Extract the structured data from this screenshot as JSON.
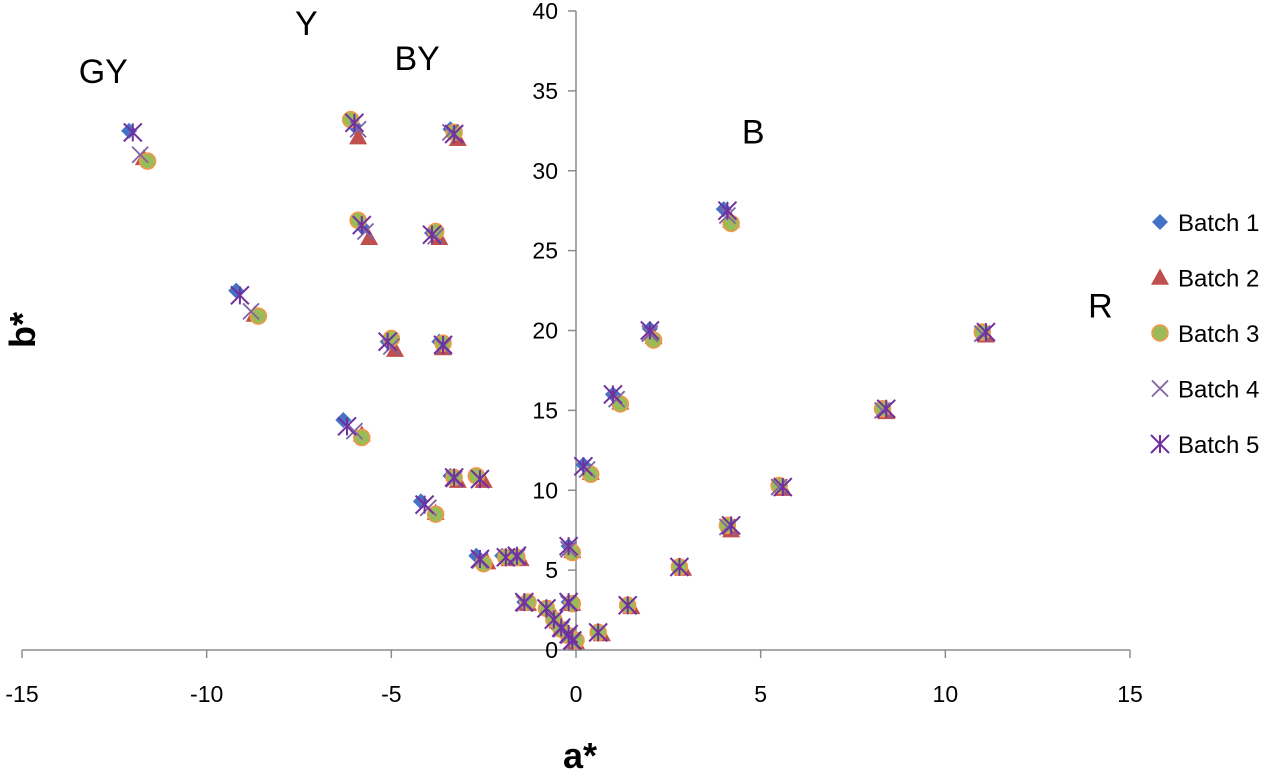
{
  "chart_data": {
    "type": "scatter",
    "xlabel": "a*",
    "ylabel": "b*",
    "xlim": [
      -15,
      15
    ],
    "ylim": [
      0,
      40
    ],
    "x_ticks": [
      -15,
      -10,
      -5,
      0,
      5,
      10,
      15
    ],
    "y_ticks": [
      0,
      5,
      10,
      15,
      20,
      25,
      30,
      35,
      40
    ],
    "grid": false,
    "legend_position": "right",
    "region_labels": [
      {
        "text": "GY",
        "x": -12.8,
        "y": 35.5
      },
      {
        "text": "Y",
        "x": -7.3,
        "y": 38.5
      },
      {
        "text": "BY",
        "x": -4.3,
        "y": 36.3
      },
      {
        "text": "B",
        "x": 4.8,
        "y": 31.7
      },
      {
        "text": "R",
        "x": 14.2,
        "y": 20.8
      }
    ],
    "series": [
      {
        "name": "Batch 1",
        "marker": "diamond",
        "color": "#4472C4",
        "points": [
          [
            -12.1,
            32.5
          ],
          [
            -9.2,
            22.5
          ],
          [
            -6.3,
            14.4
          ],
          [
            -4.2,
            9.3
          ],
          [
            -2.7,
            5.9
          ],
          [
            -6.0,
            32.8
          ],
          [
            -5.8,
            26.5
          ],
          [
            -5.1,
            19.3
          ],
          [
            -3.9,
            26.1
          ],
          [
            -3.7,
            19.3
          ],
          [
            -3.4,
            32.6
          ],
          [
            -3.4,
            10.9
          ],
          [
            -2.7,
            10.9
          ],
          [
            -2.0,
            5.9
          ],
          [
            -1.6,
            5.9
          ],
          [
            -1.4,
            3.0
          ],
          [
            -0.8,
            2.7
          ],
          [
            -0.6,
            2.0
          ],
          [
            -0.5,
            1.4
          ],
          [
            -0.3,
            1.0
          ],
          [
            -0.2,
            6.5
          ],
          [
            -0.2,
            3.0
          ],
          [
            -0.1,
            0.6
          ],
          [
            0.2,
            11.6
          ],
          [
            0.6,
            1.1
          ],
          [
            1.0,
            16.0
          ],
          [
            1.4,
            2.8
          ],
          [
            2.0,
            20.1
          ],
          [
            2.8,
            5.2
          ],
          [
            4.0,
            27.6
          ],
          [
            4.1,
            7.8
          ],
          [
            5.5,
            10.3
          ],
          [
            8.3,
            15.1
          ],
          [
            11.0,
            19.9
          ]
        ]
      },
      {
        "name": "Batch 2",
        "marker": "triangle",
        "color": "#C0504D",
        "points": [
          [
            -11.7,
            30.8
          ],
          [
            -8.7,
            21.0
          ],
          [
            -5.8,
            13.5
          ],
          [
            -3.8,
            8.6
          ],
          [
            -2.4,
            5.5
          ],
          [
            -5.9,
            32.1
          ],
          [
            -5.6,
            25.8
          ],
          [
            -4.9,
            18.8
          ],
          [
            -3.7,
            25.8
          ],
          [
            -3.6,
            18.9
          ],
          [
            -3.2,
            32.0
          ],
          [
            -3.2,
            10.6
          ],
          [
            -2.5,
            10.6
          ],
          [
            -1.8,
            5.7
          ],
          [
            -1.5,
            5.7
          ],
          [
            -1.3,
            2.9
          ],
          [
            -0.7,
            2.6
          ],
          [
            -0.5,
            1.8
          ],
          [
            -0.4,
            1.3
          ],
          [
            -0.2,
            0.9
          ],
          [
            -0.1,
            6.2
          ],
          [
            -0.1,
            2.9
          ],
          [
            0.0,
            0.5
          ],
          [
            0.4,
            11.1
          ],
          [
            0.7,
            1.0
          ],
          [
            1.2,
            15.5
          ],
          [
            1.5,
            2.7
          ],
          [
            2.1,
            19.6
          ],
          [
            2.9,
            5.1
          ],
          [
            4.2,
            26.9
          ],
          [
            4.2,
            7.5
          ],
          [
            5.6,
            10.1
          ],
          [
            8.4,
            14.9
          ],
          [
            11.1,
            19.7
          ]
        ]
      },
      {
        "name": "Batch 3",
        "marker": "circle",
        "color": "#9BBB59",
        "points": [
          [
            -11.6,
            30.6
          ],
          [
            -8.6,
            20.9
          ],
          [
            -5.8,
            13.3
          ],
          [
            -3.8,
            8.5
          ],
          [
            -2.5,
            5.4
          ],
          [
            -6.1,
            33.2
          ],
          [
            -5.9,
            26.9
          ],
          [
            -5.0,
            19.5
          ],
          [
            -3.8,
            26.2
          ],
          [
            -3.6,
            19.2
          ],
          [
            -3.3,
            32.4
          ],
          [
            -3.3,
            10.8
          ],
          [
            -2.7,
            10.9
          ],
          [
            -1.9,
            5.8
          ],
          [
            -1.6,
            5.8
          ],
          [
            -1.3,
            3.0
          ],
          [
            -0.8,
            2.6
          ],
          [
            -0.6,
            1.9
          ],
          [
            -0.4,
            1.3
          ],
          [
            -0.2,
            0.9
          ],
          [
            -0.1,
            6.1
          ],
          [
            -0.1,
            2.9
          ],
          [
            0.0,
            0.6
          ],
          [
            0.4,
            11.0
          ],
          [
            0.6,
            1.1
          ],
          [
            1.2,
            15.4
          ],
          [
            1.4,
            2.8
          ],
          [
            2.1,
            19.4
          ],
          [
            2.8,
            5.2
          ],
          [
            4.2,
            26.7
          ],
          [
            4.1,
            7.8
          ],
          [
            5.5,
            10.3
          ],
          [
            8.3,
            15.1
          ],
          [
            11.0,
            19.9
          ]
        ]
      },
      {
        "name": "Batch 4",
        "marker": "x",
        "color": "#8064A2",
        "points": [
          [
            -11.8,
            31.0
          ],
          [
            -8.8,
            21.2
          ],
          [
            -6.0,
            13.7
          ],
          [
            -4.0,
            8.9
          ],
          [
            -2.6,
            5.6
          ],
          [
            -5.9,
            32.6
          ],
          [
            -5.7,
            26.2
          ],
          [
            -5.0,
            19.0
          ],
          [
            -3.8,
            25.9
          ],
          [
            -3.6,
            19.0
          ],
          [
            -3.4,
            32.4
          ],
          [
            -3.3,
            10.7
          ],
          [
            -2.6,
            10.7
          ],
          [
            -1.9,
            5.8
          ],
          [
            -1.6,
            5.8
          ],
          [
            -1.4,
            2.9
          ],
          [
            -0.8,
            2.6
          ],
          [
            -0.6,
            1.9
          ],
          [
            -0.4,
            1.3
          ],
          [
            -0.2,
            0.9
          ],
          [
            -0.2,
            6.3
          ],
          [
            -0.2,
            2.9
          ],
          [
            -0.1,
            0.5
          ],
          [
            0.3,
            11.3
          ],
          [
            0.6,
            1.1
          ],
          [
            1.1,
            15.7
          ],
          [
            1.4,
            2.8
          ],
          [
            2.0,
            19.8
          ],
          [
            2.8,
            5.2
          ],
          [
            4.1,
            27.2
          ],
          [
            4.1,
            7.7
          ],
          [
            5.5,
            10.2
          ],
          [
            8.3,
            15.0
          ],
          [
            11.0,
            19.8
          ]
        ]
      },
      {
        "name": "Batch 5",
        "marker": "asterisk",
        "color": "#7030A0",
        "points": [
          [
            -12.0,
            32.4
          ],
          [
            -9.1,
            22.2
          ],
          [
            -6.2,
            14.0
          ],
          [
            -4.1,
            9.1
          ],
          [
            -2.6,
            5.7
          ],
          [
            -6.0,
            33.0
          ],
          [
            -5.8,
            26.6
          ],
          [
            -5.1,
            19.3
          ],
          [
            -3.9,
            26.0
          ],
          [
            -3.6,
            19.1
          ],
          [
            -3.3,
            32.3
          ],
          [
            -3.3,
            10.8
          ],
          [
            -2.6,
            10.7
          ],
          [
            -1.9,
            5.8
          ],
          [
            -1.6,
            5.9
          ],
          [
            -1.4,
            3.0
          ],
          [
            -0.8,
            2.6
          ],
          [
            -0.6,
            1.9
          ],
          [
            -0.4,
            1.4
          ],
          [
            -0.2,
            1.0
          ],
          [
            -0.2,
            6.5
          ],
          [
            -0.2,
            3.0
          ],
          [
            -0.1,
            0.6
          ],
          [
            0.2,
            11.5
          ],
          [
            0.6,
            1.1
          ],
          [
            1.0,
            16.0
          ],
          [
            1.4,
            2.8
          ],
          [
            2.0,
            20.0
          ],
          [
            2.8,
            5.2
          ],
          [
            4.1,
            27.5
          ],
          [
            4.2,
            7.8
          ],
          [
            5.6,
            10.2
          ],
          [
            8.4,
            15.1
          ],
          [
            11.1,
            19.9
          ]
        ]
      }
    ]
  }
}
